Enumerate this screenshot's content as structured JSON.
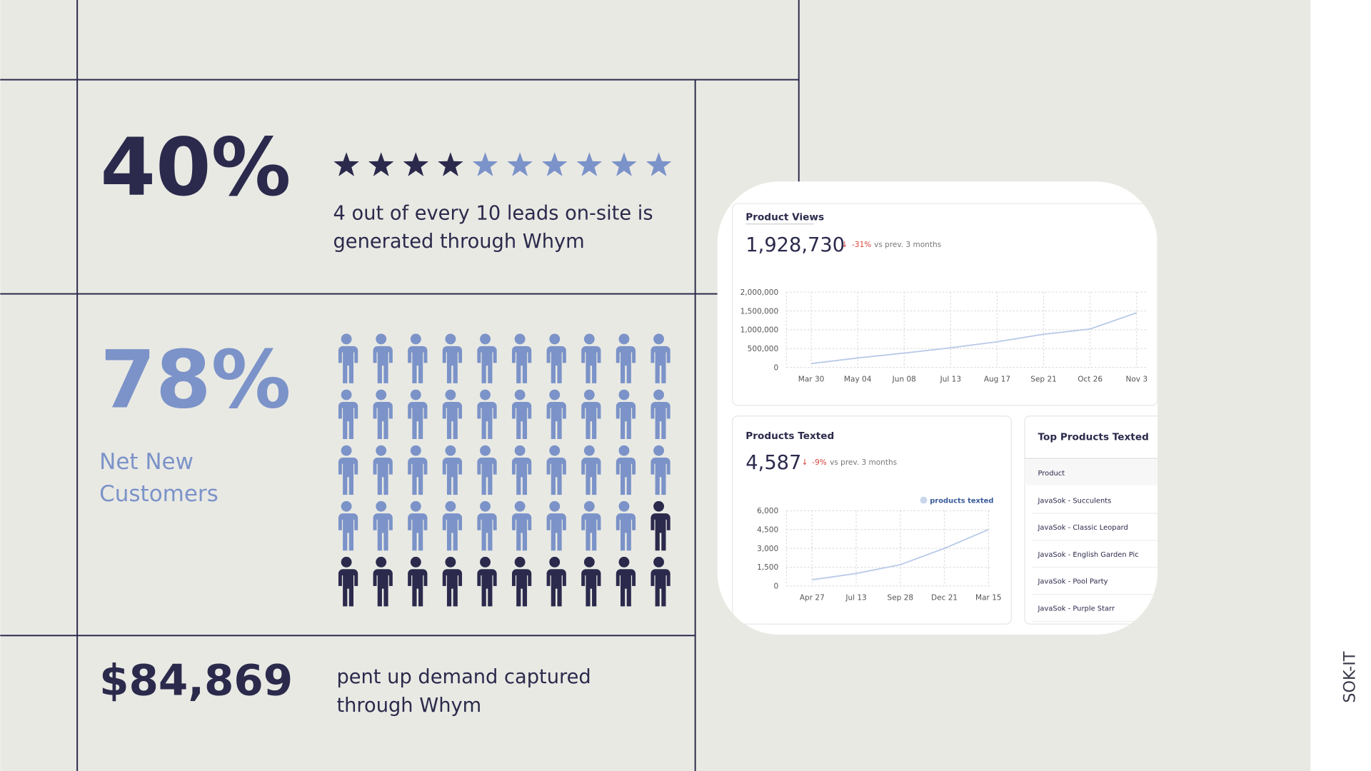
{
  "stats": [
    {
      "value": "40%",
      "description": [
        "4 out of every 10 leads on-site is",
        "generated through Whym"
      ]
    },
    {
      "value": "78%",
      "description": [
        "Net New",
        "Customers"
      ]
    },
    {
      "value": "$84,869",
      "description": [
        "pent up demand captured",
        "through Whym"
      ]
    }
  ],
  "stars": {
    "total": 10,
    "filled": 4
  },
  "people": {
    "total": 50,
    "highlighted": 39
  },
  "brand": "SOK-IT",
  "chart_data": [
    {
      "type": "line",
      "title": "Product Views",
      "total": "1,928,730",
      "change": "-31%",
      "comparison": "vs prev. 3 months",
      "categories": [
        "Mar 30",
        "May 04",
        "Jun 08",
        "Jul 13",
        "Aug 17",
        "Sep 21",
        "Oct 26",
        "Nov 3"
      ],
      "values": [
        100000,
        250000,
        380000,
        520000,
        680000,
        880000,
        1020000,
        1450000
      ],
      "color": "#b9cbe8",
      "ylim": [
        0,
        2000000
      ],
      "yticks": [
        0,
        {
          "value": 500000,
          "label": "500,000"
        },
        {
          "value": 1000000,
          "label": "1,000,000"
        },
        {
          "value": 1500000,
          "label": "1,500,000"
        },
        {
          "value": 2000000,
          "label": "2,000,000"
        }
      ],
      "grid": true
    },
    {
      "type": "line",
      "title": "Products Texted",
      "total": "4,587",
      "change": "-9%",
      "comparison": "vs prev. 3 months",
      "categories": [
        "Apr 27",
        "Jul 13",
        "Sep 28",
        "Dec 21",
        "Mar 15"
      ],
      "series": [
        {
          "name": "products texted",
          "color": "#b9cbe8",
          "values": [
            500,
            1000,
            1700,
            3000,
            4500
          ]
        }
      ],
      "ylim": [
        0,
        6000
      ],
      "yticks": [
        0,
        {
          "value": 1500,
          "label": "1,500"
        },
        {
          "value": 3000,
          "label": "3,000"
        },
        {
          "value": 4500,
          "label": "4,500"
        },
        {
          "value": 6000,
          "label": "6,000"
        }
      ],
      "grid": true
    }
  ],
  "table": {
    "title": "Top Products Texted",
    "header": "Product",
    "rows": [
      "JavaSok - Succulents",
      "JavaSok - Classic Leopard",
      "JavaSok - English Garden Pic",
      "JavaSok - Pool Party",
      "JavaSok - Purple Starr"
    ]
  }
}
